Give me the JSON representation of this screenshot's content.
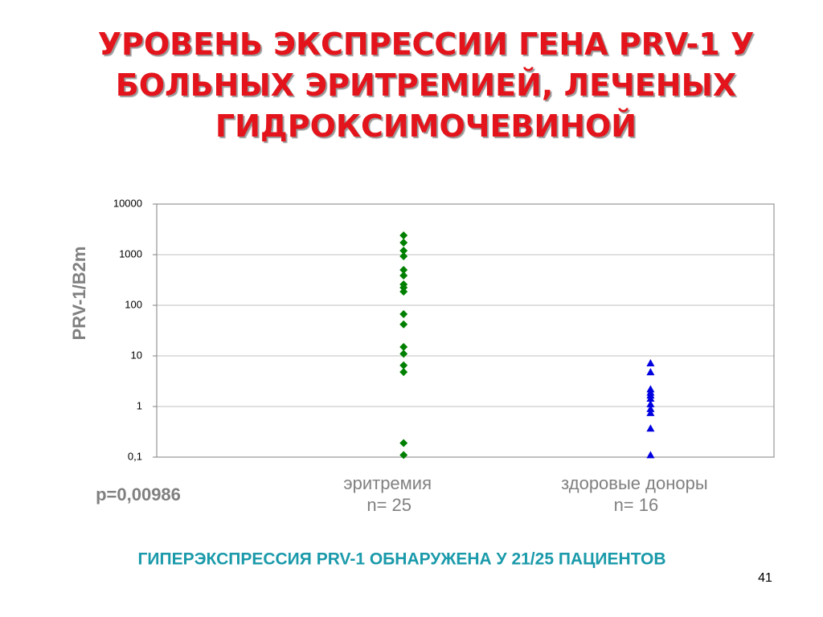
{
  "chart_data": {
    "type": "scatter",
    "title": "УРОВЕНЬ ЭКСПРЕССИИ ГЕНА PRV-1 У\nБОЛЬНЫХ ЭРИТРЕМИЕЙ, ЛЕЧЕНЫХ\nГИДРОКСИМОЧЕВИНОЙ",
    "y_label": "PRV-1/B2m",
    "annotation": "p=0,00986",
    "log_y": true,
    "grid": true,
    "xlim": [
      0,
      2.5
    ],
    "ylim": [
      0.1,
      10000
    ],
    "yticks": [
      {
        "value": 0.1,
        "label": "0,1"
      },
      1,
      10,
      100,
      1000,
      10000
    ],
    "series": [
      {
        "name": "эритремия",
        "n_label": "n= 25",
        "color": "#008000",
        "marker": "diamond",
        "x": [
          1,
          1,
          1,
          1,
          1,
          1,
          1,
          1,
          1,
          1,
          1,
          1,
          1,
          1,
          1,
          1,
          1
        ],
        "values": [
          2400,
          1730,
          1200,
          930,
          500,
          386,
          259,
          223,
          186,
          67,
          42,
          15,
          11,
          6.5,
          4.8,
          0.19,
          0.11
        ]
      },
      {
        "name": "здоровые доноры",
        "n_label": "n= 16",
        "color": "#0000e0",
        "marker": "triangle",
        "x": [
          2,
          2,
          2,
          2,
          2,
          2,
          2,
          2,
          2,
          2,
          2
        ],
        "values": [
          7.2,
          4.8,
          2.2,
          1.9,
          1.67,
          1.44,
          1.12,
          0.9,
          0.75,
          0.37,
          0.11
        ]
      }
    ]
  },
  "slide": {
    "footer": "ГИПЕРЭКСПРЕССИЯ PRV-1 ОБНАРУЖЕНА У 21/25 ПАЦИЕНТОВ",
    "page_number": "41"
  }
}
